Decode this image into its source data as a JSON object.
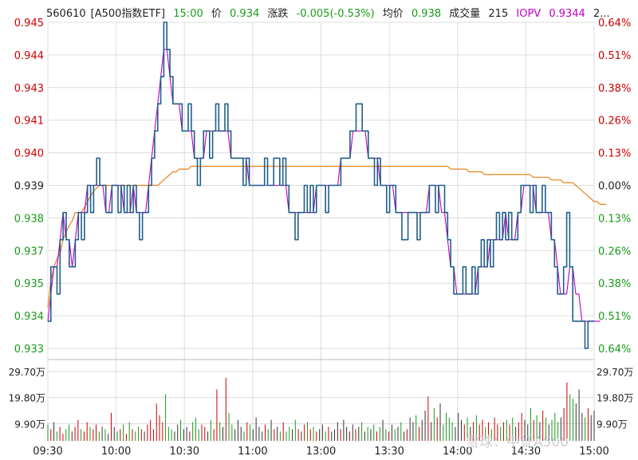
{
  "header": {
    "code": "560610",
    "name": "[A500指数ETF]",
    "time": "15:00",
    "price_label": "价",
    "price": "0.934",
    "change_label": "涨跌",
    "change": "-0.005(-0.53%)",
    "avg_label": "均价",
    "avg": "0.938",
    "volume_label": "成交量",
    "volume": "215",
    "iopv_label": "IOPV",
    "iopv": "0.9344",
    "more": "2..."
  },
  "watermark": "雪球：中证A500",
  "colors": {
    "up": "#cc0000",
    "down": "#1a9a1a",
    "neutral": "#222222",
    "price_line": "#1f5f8b",
    "iopv_line": "#c000c0",
    "avg_line": "#e8821a",
    "grid": "#dcdcdc"
  },
  "chart_data": {
    "type": "line",
    "x_ticks": [
      "09:30",
      "10:00",
      "10:30",
      "11:00",
      "13:00",
      "13:30",
      "14:00",
      "14:30",
      "15:00"
    ],
    "y_left_ticks": [
      "0.945",
      "0.944",
      "0.943",
      "0.941",
      "0.940",
      "0.939",
      "0.938",
      "0.937",
      "0.935",
      "0.934",
      "0.933"
    ],
    "y_right_ticks": [
      "0.64%",
      "0.51%",
      "0.38%",
      "0.26%",
      "0.13%",
      "0.00%",
      "0.13%",
      "0.26%",
      "0.38%",
      "0.51%",
      "0.64%"
    ],
    "ylim": [
      0.933,
      0.945
    ],
    "prev_close": 0.939,
    "volume_ticks": [
      "29.70万",
      "19.80万",
      "9.90万"
    ],
    "volume_max": 297000,
    "series": [
      {
        "key": "price",
        "values": [
          0.934,
          0.936,
          0.936,
          0.935,
          0.937,
          0.938,
          0.937,
          0.936,
          0.936,
          0.937,
          0.938,
          0.937,
          0.938,
          0.939,
          0.938,
          0.939,
          0.94,
          0.939,
          0.939,
          0.938,
          0.938,
          0.939,
          0.939,
          0.938,
          0.939,
          0.938,
          0.939,
          0.938,
          0.939,
          0.938,
          0.937,
          0.938,
          0.938,
          0.939,
          0.94,
          0.941,
          0.942,
          0.943,
          0.945,
          0.944,
          0.943,
          0.942,
          0.942,
          0.942,
          0.941,
          0.941,
          0.942,
          0.941,
          0.94,
          0.939,
          0.94,
          0.941,
          0.941,
          0.94,
          0.941,
          0.942,
          0.941,
          0.941,
          0.942,
          0.941,
          0.94,
          0.94,
          0.94,
          0.94,
          0.939,
          0.94,
          0.939,
          0.939,
          0.939,
          0.939,
          0.939,
          0.94,
          0.939,
          0.939,
          0.94,
          0.94,
          0.939,
          0.94,
          0.939,
          0.938,
          0.938,
          0.937,
          0.938,
          0.938,
          0.939,
          0.938,
          0.939,
          0.938,
          0.939,
          0.939,
          0.939,
          0.938,
          0.939,
          0.939,
          0.939,
          0.939,
          0.94,
          0.94,
          0.94,
          0.941,
          0.941,
          0.942,
          0.942,
          0.941,
          0.941,
          0.94,
          0.94,
          0.939,
          0.94,
          0.939,
          0.939,
          0.938,
          0.939,
          0.939,
          0.938,
          0.938,
          0.937,
          0.937,
          0.938,
          0.938,
          0.938,
          0.937,
          0.938,
          0.938,
          0.938,
          0.939,
          0.939,
          0.938,
          0.939,
          0.939,
          0.938,
          0.937,
          0.936,
          0.935,
          0.935,
          0.935,
          0.936,
          0.935,
          0.935,
          0.936,
          0.935,
          0.936,
          0.937,
          0.936,
          0.937,
          0.936,
          0.937,
          0.938,
          0.937,
          0.938,
          0.937,
          0.938,
          0.937,
          0.937,
          0.938,
          0.939,
          0.939,
          0.939,
          0.938,
          0.939,
          0.938,
          0.938,
          0.939,
          0.938,
          0.938,
          0.937,
          0.936,
          0.935,
          0.935,
          0.936,
          0.938,
          0.936,
          0.934,
          0.934,
          0.934,
          0.934,
          0.933,
          0.934,
          0.934,
          0.934
        ]
      },
      {
        "key": "iopv",
        "values": [
          0.934,
          0.935,
          0.936,
          0.936,
          0.937,
          0.938,
          0.937,
          0.937,
          0.936,
          0.937,
          0.938,
          0.938,
          0.938,
          0.939,
          0.939,
          0.939,
          0.939,
          0.939,
          0.939,
          0.938,
          0.938,
          0.939,
          0.939,
          0.939,
          0.939,
          0.938,
          0.938,
          0.938,
          0.939,
          0.938,
          0.938,
          0.938,
          0.938,
          0.939,
          0.94,
          0.941,
          0.942,
          0.943,
          0.944,
          0.944,
          0.943,
          0.942,
          0.942,
          0.942,
          0.941,
          0.941,
          0.941,
          0.941,
          0.94,
          0.94,
          0.94,
          0.94,
          0.941,
          0.941,
          0.941,
          0.941,
          0.941,
          0.941,
          0.941,
          0.941,
          0.94,
          0.94,
          0.94,
          0.94,
          0.94,
          0.94,
          0.939,
          0.939,
          0.939,
          0.939,
          0.939,
          0.939,
          0.939,
          0.939,
          0.939,
          0.939,
          0.939,
          0.939,
          0.939,
          0.938,
          0.938,
          0.938,
          0.938,
          0.938,
          0.938,
          0.938,
          0.938,
          0.938,
          0.939,
          0.939,
          0.939,
          0.939,
          0.939,
          0.939,
          0.939,
          0.939,
          0.94,
          0.94,
          0.94,
          0.94,
          0.941,
          0.941,
          0.941,
          0.941,
          0.941,
          0.94,
          0.94,
          0.94,
          0.94,
          0.939,
          0.939,
          0.939,
          0.939,
          0.939,
          0.938,
          0.938,
          0.938,
          0.938,
          0.938,
          0.938,
          0.938,
          0.938,
          0.938,
          0.938,
          0.938,
          0.939,
          0.939,
          0.939,
          0.939,
          0.938,
          0.938,
          0.937,
          0.936,
          0.936,
          0.935,
          0.935,
          0.935,
          0.935,
          0.935,
          0.935,
          0.935,
          0.936,
          0.936,
          0.936,
          0.936,
          0.937,
          0.937,
          0.937,
          0.937,
          0.937,
          0.938,
          0.937,
          0.937,
          0.937,
          0.938,
          0.938,
          0.939,
          0.939,
          0.939,
          0.939,
          0.938,
          0.938,
          0.938,
          0.938,
          0.938,
          0.937,
          0.937,
          0.936,
          0.935,
          0.935,
          0.935,
          0.936,
          0.936,
          0.935,
          0.935,
          0.934,
          0.934,
          0.934,
          0.934,
          0.934,
          0.934,
          0.934
        ]
      },
      {
        "key": "avg",
        "values": [
          0.9345,
          0.9355,
          0.936,
          0.9363,
          0.9365,
          0.937,
          0.9373,
          0.9375,
          0.9377,
          0.938,
          0.938,
          0.938,
          0.9382,
          0.9384,
          0.9386,
          0.9388,
          0.9389,
          0.939,
          0.939,
          0.939,
          0.939,
          0.939,
          0.939,
          0.939,
          0.939,
          0.939,
          0.939,
          0.939,
          0.939,
          0.939,
          0.939,
          0.939,
          0.939,
          0.939,
          0.939,
          0.939,
          0.939,
          0.9391,
          0.9392,
          0.9393,
          0.9394,
          0.9395,
          0.9395,
          0.9396,
          0.9396,
          0.9396,
          0.9396,
          0.9397,
          0.9397,
          0.9397,
          0.9397,
          0.9397,
          0.9397,
          0.9397,
          0.9397,
          0.9397,
          0.9397,
          0.9397,
          0.9397,
          0.9397,
          0.9397,
          0.9397,
          0.9397,
          0.9397,
          0.9397,
          0.9397,
          0.9397,
          0.9397,
          0.9397,
          0.9397,
          0.9397,
          0.9397,
          0.9397,
          0.9397,
          0.9397,
          0.9397,
          0.9397,
          0.9397,
          0.9397,
          0.9397,
          0.9397,
          0.9397,
          0.9397,
          0.9397,
          0.9397,
          0.9397,
          0.9397,
          0.9397,
          0.9397,
          0.9397,
          0.9397,
          0.9397,
          0.9397,
          0.9397,
          0.9397,
          0.9397,
          0.9397,
          0.9397,
          0.9397,
          0.9397,
          0.9397,
          0.9397,
          0.9397,
          0.9397,
          0.9397,
          0.9397,
          0.9397,
          0.9397,
          0.9397,
          0.9397,
          0.9397,
          0.9397,
          0.9397,
          0.9397,
          0.9397,
          0.9397,
          0.9397,
          0.9397,
          0.9397,
          0.9397,
          0.9397,
          0.9397,
          0.9397,
          0.9397,
          0.9397,
          0.9397,
          0.9397,
          0.9397,
          0.9397,
          0.9397,
          0.9397,
          0.9397,
          0.9396,
          0.9396,
          0.9396,
          0.9396,
          0.9396,
          0.9396,
          0.9395,
          0.9395,
          0.9395,
          0.9395,
          0.9395,
          0.9394,
          0.9394,
          0.9394,
          0.9394,
          0.9394,
          0.9394,
          0.9394,
          0.9394,
          0.9394,
          0.9394,
          0.9394,
          0.9394,
          0.9394,
          0.9394,
          0.9394,
          0.9394,
          0.9393,
          0.9393,
          0.9393,
          0.9393,
          0.9393,
          0.9393,
          0.9392,
          0.9392,
          0.9392,
          0.9392,
          0.9391,
          0.9391,
          0.9391,
          0.9391,
          0.939,
          0.9389,
          0.9388,
          0.9387,
          0.9386,
          0.9385,
          0.9384,
          0.9384,
          0.9383,
          0.9383,
          0.9383
        ]
      }
    ],
    "volumes": [
      7,
      5,
      8,
      4,
      6,
      3,
      5,
      7,
      4,
      6,
      9,
      5,
      4,
      8,
      6,
      5,
      7,
      4,
      6,
      5,
      3,
      12,
      6,
      4,
      5,
      7,
      3,
      8,
      5,
      4,
      6,
      5,
      4,
      7,
      9,
      5,
      16,
      11,
      8,
      20,
      6,
      5,
      4,
      7,
      9,
      5,
      6,
      4,
      8,
      10,
      5,
      7,
      6,
      4,
      9,
      5,
      22,
      8,
      6,
      27,
      12,
      7,
      5,
      9,
      6,
      4,
      8,
      7,
      5,
      10,
      6,
      4,
      7,
      5,
      9,
      5,
      6,
      4,
      8,
      4,
      6,
      5,
      9,
      5,
      4,
      7,
      8,
      5,
      6,
      4,
      5,
      7,
      4,
      6,
      4,
      5,
      8,
      5,
      9,
      6,
      4,
      7,
      5,
      6,
      8,
      4,
      6,
      5,
      7,
      4,
      6,
      9,
      5,
      4,
      7,
      5,
      6,
      8,
      4,
      5,
      10,
      8,
      11,
      6,
      9,
      13,
      19,
      8,
      14,
      10,
      16,
      7,
      12,
      10,
      8,
      6,
      12,
      9,
      7,
      10,
      6,
      8,
      11,
      7,
      9,
      6,
      8,
      5,
      10,
      7,
      6,
      8,
      9,
      7,
      10,
      6,
      8,
      12,
      9,
      7,
      14,
      9,
      11,
      8,
      13,
      10,
      7,
      9,
      12,
      8,
      10,
      14,
      25,
      20,
      18,
      16,
      22,
      12,
      10,
      14,
      11,
      13
    ]
  }
}
